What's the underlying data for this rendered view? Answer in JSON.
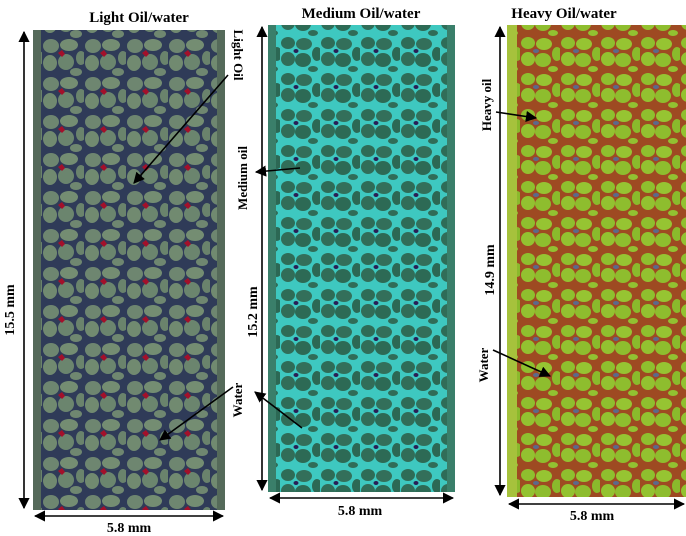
{
  "panels": [
    {
      "title": "Light Oil/water",
      "oil_label": "Light Oil",
      "water_label": "Water",
      "height": "15.5 mm",
      "width": "5.8 mm"
    },
    {
      "title": "Medium Oil/water",
      "oil_label": "Medium oil",
      "water_label": "Water",
      "height": "15.2 mm",
      "width": "5.8 mm"
    },
    {
      "title": "Heavy Oil/water",
      "oil_label": "Heavy oil",
      "water_label": "Water",
      "height": "14.9 mm",
      "width": "5.8 mm"
    }
  ]
}
